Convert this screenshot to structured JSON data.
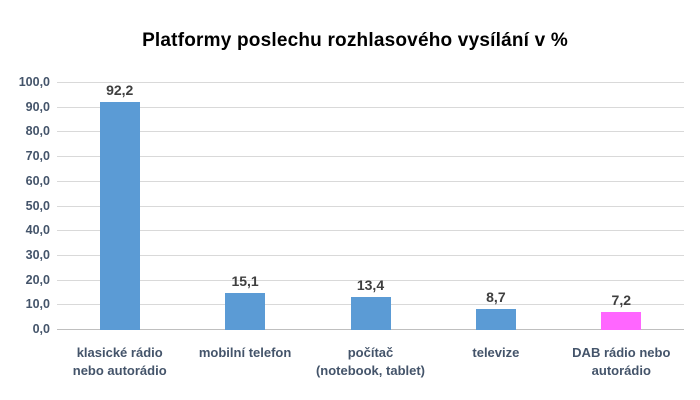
{
  "chart_data": {
    "type": "bar",
    "title": "Platformy poslechu rozhlasového vysílání v %",
    "categories": [
      "klasické rádio\nnebo autorádio",
      "mobilní telefon",
      "počítač\n(notebook, tablet)",
      "televize",
      "DAB rádio nebo\nautorádio"
    ],
    "values": [
      92.2,
      15.1,
      13.4,
      8.7,
      7.2
    ],
    "value_labels": [
      "92,2",
      "15,1",
      "13,4",
      "8,7",
      "7,2"
    ],
    "bar_colors": [
      "#5B9BD5",
      "#5B9BD5",
      "#5B9BD5",
      "#5B9BD5",
      "#FF66FF"
    ],
    "xlabel": "",
    "ylabel": "",
    "ylim": [
      0,
      100
    ],
    "ytick_step": 10,
    "ytick_labels": [
      "0,0",
      "10,0",
      "20,0",
      "30,0",
      "40,0",
      "50,0",
      "60,0",
      "70,0",
      "80,0",
      "90,0",
      "100,0"
    ],
    "grid": true,
    "legend": false
  },
  "colors": {
    "background": "#FFFFFF",
    "bar_default": "#5B9BD5",
    "bar_highlight": "#FF66FF",
    "gridline": "#D9D9D9",
    "baseline": "#BFBFBF",
    "ytick_text": "#44546A",
    "category_text": "#44546A",
    "value_text": "#3F3F3F",
    "title_text": "#000000"
  }
}
